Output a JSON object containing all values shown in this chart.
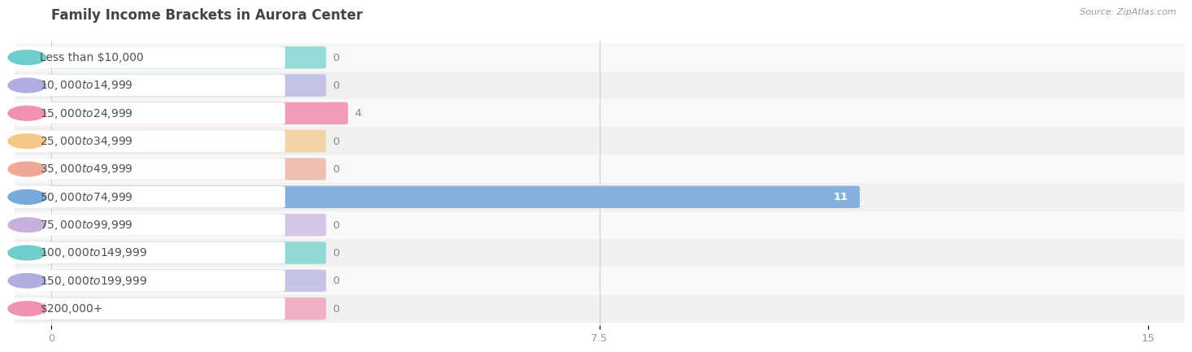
{
  "title": "Family Income Brackets in Aurora Center",
  "source": "Source: ZipAtlas.com",
  "categories": [
    "Less than $10,000",
    "$10,000 to $14,999",
    "$15,000 to $24,999",
    "$25,000 to $34,999",
    "$35,000 to $49,999",
    "$50,000 to $74,999",
    "$75,000 to $99,999",
    "$100,000 to $149,999",
    "$150,000 to $199,999",
    "$200,000+"
  ],
  "values": [
    0,
    0,
    4,
    0,
    0,
    11,
    0,
    0,
    0,
    0
  ],
  "bar_colors": [
    "#6ecfca",
    "#b0aee0",
    "#f092b0",
    "#f5c888",
    "#f0a898",
    "#78aadc",
    "#c8b0dc",
    "#6ecfca",
    "#b0aee0",
    "#f092b0"
  ],
  "xlim": [
    0,
    15
  ],
  "xticks": [
    0,
    7.5,
    15
  ],
  "background_color": "#f7f7f7",
  "row_bg_color": "#ececec",
  "row_white_color": "#f7f7f7",
  "title_fontsize": 12,
  "label_fontsize": 10,
  "value_fontsize": 9.5
}
